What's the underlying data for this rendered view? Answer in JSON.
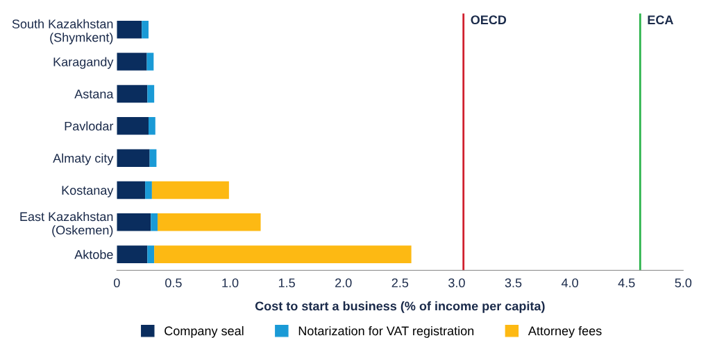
{
  "chart_data": {
    "type": "bar",
    "orientation": "horizontal",
    "stacked": true,
    "categories": [
      "South Kazakhstan\n(Shymkent)",
      "Karagandy",
      "Astana",
      "Pavlodar",
      "Almaty city",
      "Kostanay",
      "East Kazakhstan\n(Oskemen)",
      "Aktobe"
    ],
    "series": [
      {
        "name": "Company seal",
        "color": "#0a2d5e",
        "values": [
          0.22,
          0.265,
          0.27,
          0.28,
          0.29,
          0.25,
          0.3,
          0.27
        ]
      },
      {
        "name": "Notarization for VAT registration",
        "color": "#1a9ad6",
        "values": [
          0.06,
          0.06,
          0.06,
          0.06,
          0.06,
          0.06,
          0.06,
          0.06
        ]
      },
      {
        "name": "Attorney fees",
        "color": "#fdb913",
        "values": [
          null,
          null,
          null,
          null,
          null,
          0.68,
          0.91,
          2.27
        ]
      }
    ],
    "xlabel": "Cost to start a business (% of income per capita)",
    "xlim": [
      0,
      5.0
    ],
    "xticks": [
      0,
      {
        "value": 0.5,
        "label": "0.5"
      },
      {
        "value": 1,
        "label": "1.0"
      },
      {
        "value": 1.5,
        "label": "1.5"
      },
      {
        "value": 2,
        "label": "2.0"
      },
      {
        "value": 2.5,
        "label": "2.5"
      },
      {
        "value": 3,
        "label": "3.0"
      },
      {
        "value": 3.5,
        "label": "3.5"
      },
      {
        "value": 4,
        "label": "4.0"
      },
      {
        "value": 4.5,
        "label": "4.5"
      },
      {
        "value": 5,
        "label": "5.0"
      }
    ],
    "ref_lines": [
      {
        "axis": "x",
        "value": 3.06,
        "label": "OECD",
        "color": "#d0202e"
      },
      {
        "axis": "x",
        "value": 4.62,
        "label": "ECA",
        "color": "#2bb34a"
      }
    ],
    "legend": "bottom",
    "grid": false
  }
}
